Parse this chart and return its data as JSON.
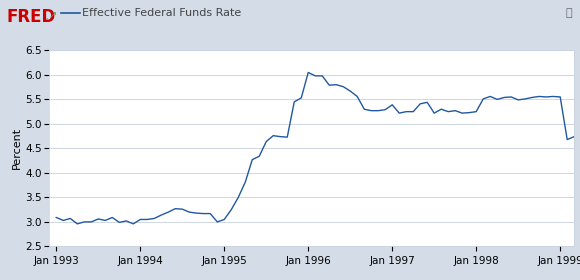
{
  "title": "Effective Federal Funds Rate",
  "ylabel": "Percent",
  "line_color": "#2158a0",
  "background_top": "#d4dce8",
  "background_plot": "#ffffff",
  "grid_color": "#c8d2de",
  "ylim": [
    2.5,
    6.5
  ],
  "yticks": [
    2.5,
    3.0,
    3.5,
    4.0,
    4.5,
    5.0,
    5.5,
    6.0,
    6.5
  ],
  "xtick_labels": [
    "Jan 1993",
    "Jan 1994",
    "Jan 1995",
    "Jan 1996",
    "Jan 1997",
    "Jan 1998",
    "Jan 1999"
  ],
  "x_tick_positions": [
    0,
    12,
    24,
    36,
    48,
    60,
    72
  ],
  "xlim": [
    -1,
    74
  ],
  "values": [
    3.09,
    3.03,
    3.07,
    2.96,
    3.0,
    3.0,
    3.06,
    3.03,
    3.09,
    2.99,
    3.02,
    2.96,
    3.05,
    3.05,
    3.07,
    3.14,
    3.2,
    3.27,
    3.26,
    3.2,
    3.18,
    3.17,
    3.17,
    3.0,
    3.05,
    3.25,
    3.5,
    3.81,
    4.27,
    4.34,
    4.64,
    4.76,
    4.74,
    4.73,
    5.45,
    5.53,
    6.05,
    5.98,
    5.98,
    5.79,
    5.8,
    5.76,
    5.67,
    5.56,
    5.3,
    5.27,
    5.27,
    5.29,
    5.39,
    5.22,
    5.25,
    5.25,
    5.41,
    5.44,
    5.22,
    5.3,
    5.25,
    5.27,
    5.22,
    5.23,
    5.25,
    5.51,
    5.56,
    5.5,
    5.54,
    5.55,
    5.49,
    5.51,
    5.54,
    5.56,
    5.55,
    5.56,
    5.55,
    4.68,
    4.74
  ],
  "fred_logo_color": "#cc0000",
  "header_bg": "#d4dce8",
  "legend_line_color": "#2158a0",
  "legend_text_color": "#444444",
  "axis_label_fontsize": 8,
  "tick_fontsize": 7.5,
  "legend_fontsize": 8,
  "fred_fontsize": 12
}
